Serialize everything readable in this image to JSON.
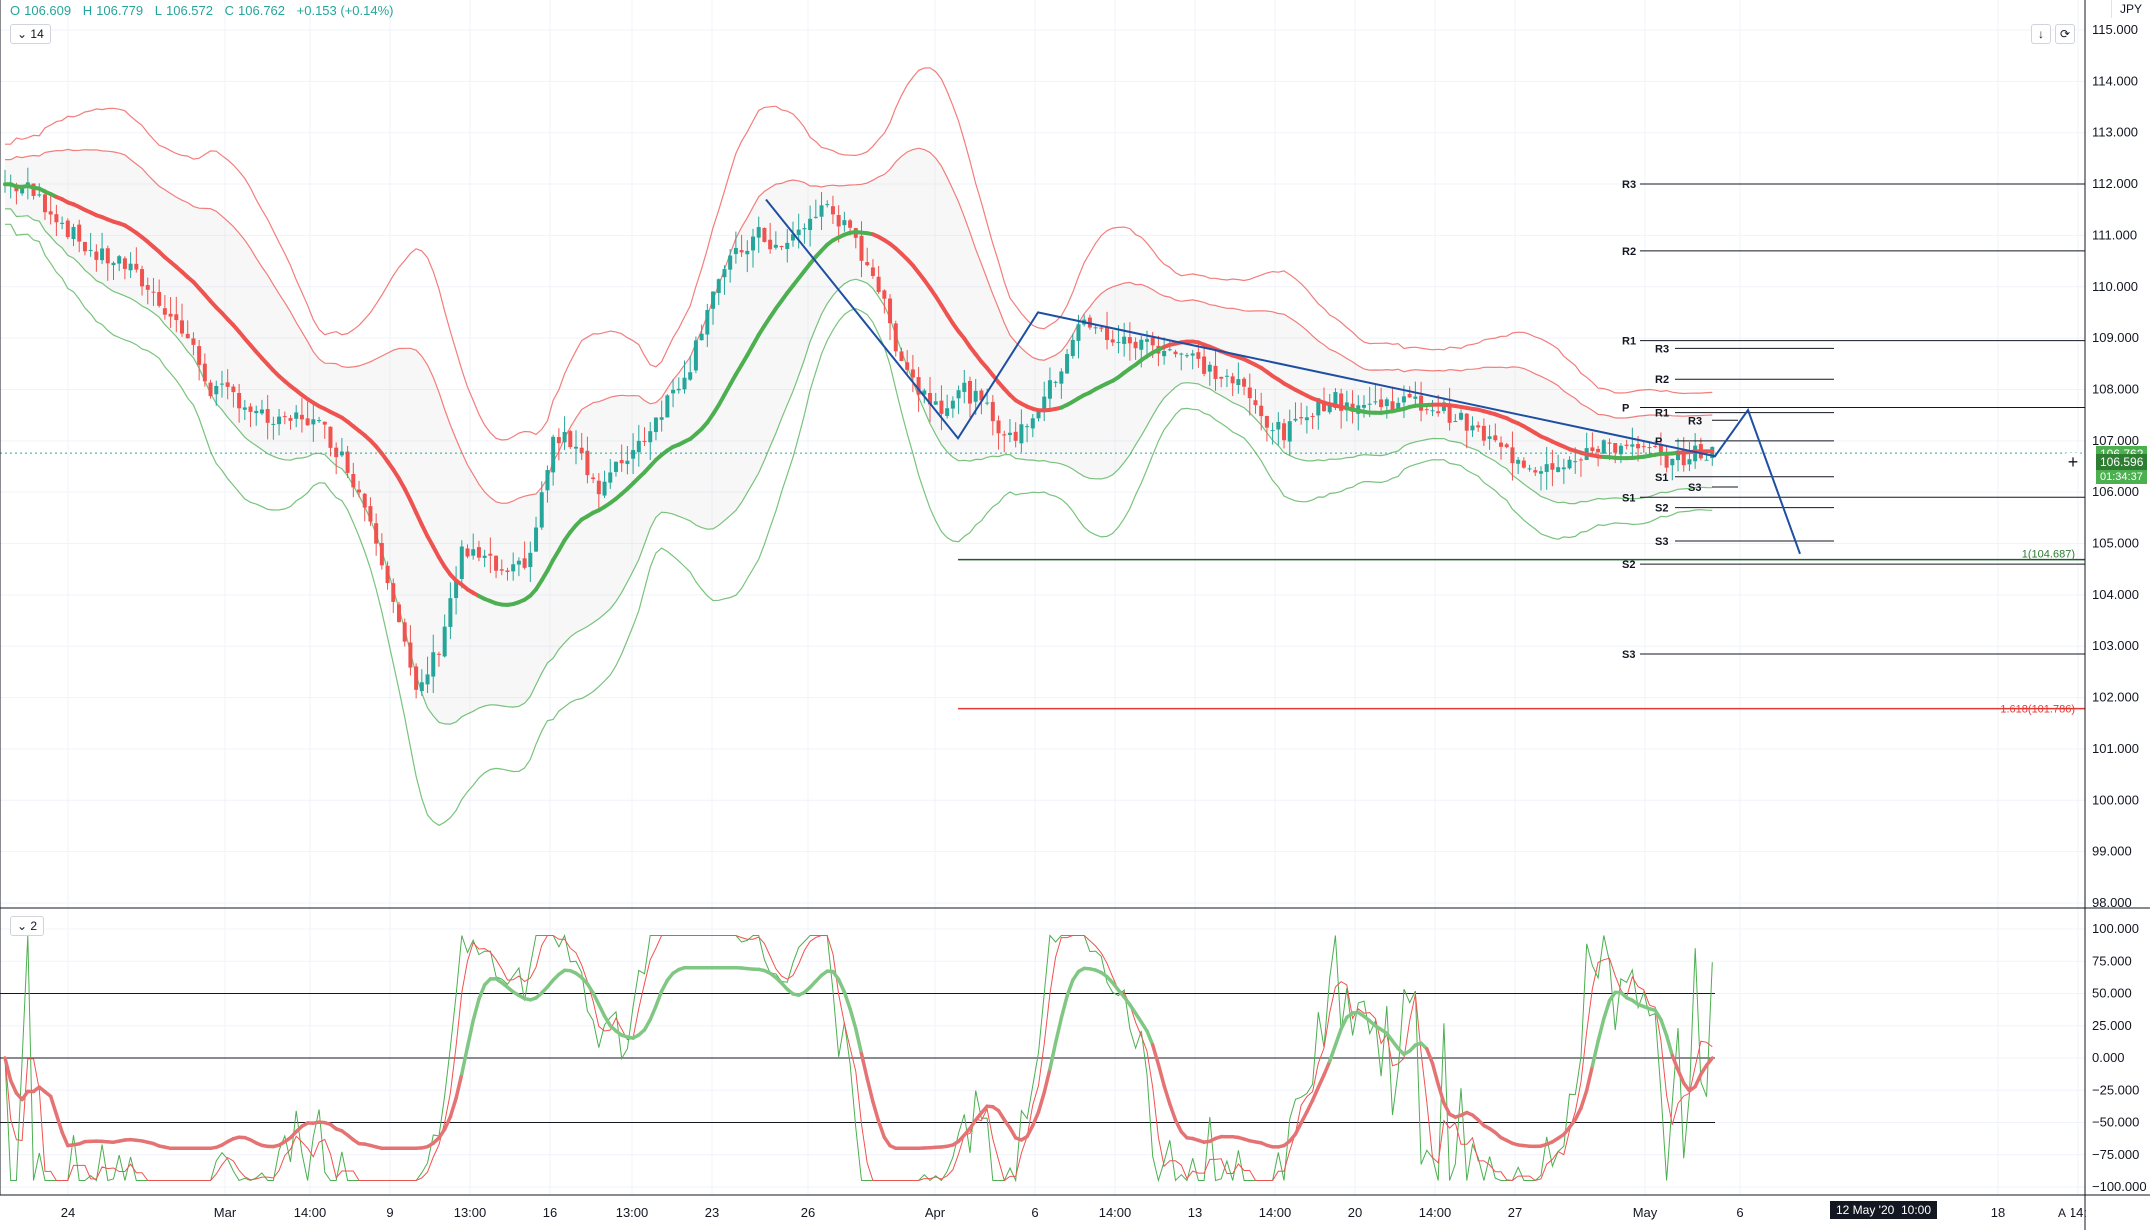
{
  "symbol_info": {
    "open_lbl": "O",
    "open": "106.609",
    "high_lbl": "H",
    "high": "106.779",
    "low_lbl": "L",
    "low": "106.572",
    "close_lbl": "C",
    "close": "106.762",
    "change": "+0.153 (+0.14%)"
  },
  "currency": "JPY",
  "main_pane_badge": "14",
  "osc_pane_badge": "2",
  "toolbar": {
    "down_icon": "down-arrow-icon",
    "refresh_icon": "refresh-icon",
    "auto_label": "A"
  },
  "price_axis": {
    "ticks": [
      "115.000",
      "114.000",
      "113.000",
      "112.000",
      "111.000",
      "110.000",
      "109.000",
      "108.000",
      "107.000",
      "106.000",
      "105.000",
      "104.000",
      "103.000",
      "102.000",
      "101.000",
      "100.000",
      "99.000",
      "98.000"
    ],
    "last_price": "106.596",
    "last_price_top": "106.762",
    "countdown": "01:34:37"
  },
  "osc_axis": {
    "ticks": [
      "100.000",
      "75.000",
      "50.000",
      "25.000",
      "0.000",
      "−25.000",
      "−50.000",
      "−75.000",
      "−100.000"
    ]
  },
  "time_axis": {
    "labels": [
      "24",
      "Mar",
      "14:00",
      "9",
      "13:00",
      "16",
      "13:00",
      "23",
      "26",
      "Apr",
      "6",
      "14:00",
      "13",
      "14:00",
      "20",
      "14:00",
      "27",
      "May",
      "6",
      "18",
      "14:"
    ],
    "crosshair_date": "12 May '20",
    "crosshair_time": "10:00"
  },
  "pivots_large": [
    "R3",
    "R2",
    "R1",
    "P",
    "S1",
    "S2",
    "S3"
  ],
  "pivots_medium": [
    "R3",
    "R2",
    "R1",
    "P",
    "S1",
    "S2",
    "S3"
  ],
  "pivots_small": [
    "R3",
    "S3"
  ],
  "fib_labels": {
    "level_1": "1(104.687)",
    "level_1618": "1.618(101.786)"
  },
  "colors": {
    "up": "#26a69a",
    "down": "#ef5350",
    "red_line": "#ef5350",
    "green_line": "#4caf50",
    "drawing": "#1e4fa3"
  },
  "chart_data": {
    "type": "candlestick",
    "title": "",
    "symbol_currency": "JPY",
    "ylim": [
      98,
      115
    ],
    "close_path": [
      [
        0,
        112.0
      ],
      [
        4,
        111.9
      ],
      [
        8,
        111.5
      ],
      [
        12,
        111.0
      ],
      [
        16,
        110.6
      ],
      [
        20,
        110.5
      ],
      [
        24,
        110.1
      ],
      [
        28,
        109.6
      ],
      [
        32,
        109.0
      ],
      [
        36,
        108.0
      ],
      [
        40,
        107.9
      ],
      [
        44,
        107.5
      ],
      [
        48,
        107.3
      ],
      [
        52,
        107.5
      ],
      [
        56,
        107.2
      ],
      [
        60,
        106.5
      ],
      [
        64,
        105.5
      ],
      [
        68,
        104.0
      ],
      [
        72,
        102.0
      ],
      [
        76,
        103.0
      ],
      [
        80,
        104.8
      ],
      [
        84,
        104.7
      ],
      [
        88,
        104.3
      ],
      [
        92,
        104.8
      ],
      [
        96,
        107.0
      ],
      [
        100,
        107.0
      ],
      [
        104,
        106.0
      ],
      [
        108,
        106.6
      ],
      [
        112,
        107.1
      ],
      [
        116,
        107.8
      ],
      [
        120,
        108.5
      ],
      [
        124,
        110.0
      ],
      [
        128,
        110.6
      ],
      [
        132,
        111.0
      ],
      [
        136,
        110.7
      ],
      [
        140,
        111.2
      ],
      [
        144,
        111.6
      ],
      [
        148,
        111.0
      ],
      [
        152,
        110.3
      ],
      [
        156,
        108.9
      ],
      [
        160,
        108.0
      ],
      [
        164,
        107.7
      ],
      [
        168,
        108.0
      ],
      [
        172,
        107.6
      ],
      [
        176,
        107.0
      ],
      [
        180,
        107.5
      ],
      [
        184,
        108.2
      ],
      [
        188,
        109.3
      ],
      [
        192,
        109.1
      ],
      [
        196,
        108.9
      ],
      [
        200,
        108.9
      ],
      [
        204,
        108.8
      ],
      [
        208,
        108.6
      ],
      [
        212,
        108.3
      ],
      [
        216,
        108.1
      ],
      [
        220,
        107.5
      ],
      [
        224,
        107.1
      ],
      [
        228,
        107.6
      ],
      [
        232,
        107.8
      ],
      [
        236,
        107.7
      ],
      [
        240,
        107.7
      ],
      [
        244,
        107.8
      ],
      [
        248,
        107.7
      ],
      [
        252,
        107.6
      ],
      [
        256,
        107.3
      ],
      [
        260,
        107.0
      ],
      [
        264,
        106.7
      ],
      [
        268,
        106.5
      ],
      [
        272,
        106.6
      ],
      [
        276,
        106.6
      ],
      [
        280,
        107.0
      ],
      [
        284,
        106.8
      ],
      [
        288,
        106.8
      ],
      [
        292,
        106.6
      ],
      [
        296,
        106.76
      ]
    ],
    "oscillator": {
      "name": "",
      "ylim": [
        -100,
        100
      ],
      "levels": [
        50,
        0,
        -50
      ]
    },
    "fib_levels": [
      {
        "ratio": "1",
        "value": 104.687
      },
      {
        "ratio": "1.618",
        "value": 101.786
      }
    ],
    "pivot_sets": [
      {
        "R3": 112.0,
        "R2": 110.7,
        "R1": 108.95,
        "P": 107.65,
        "S1": 105.9,
        "S2": 104.6,
        "S3": 102.85
      },
      {
        "R3": 108.8,
        "R2": 108.2,
        "R1": 107.55,
        "P": 107.0,
        "S1": 106.3,
        "S2": 105.7,
        "S3": 105.05
      },
      {
        "R3": 107.4,
        "S3": 106.1
      }
    ],
    "projection": [
      [
        104.687,
        0
      ],
      [
        107.0,
        1
      ],
      [
        107.6,
        2
      ],
      [
        104.8,
        3
      ]
    ]
  }
}
